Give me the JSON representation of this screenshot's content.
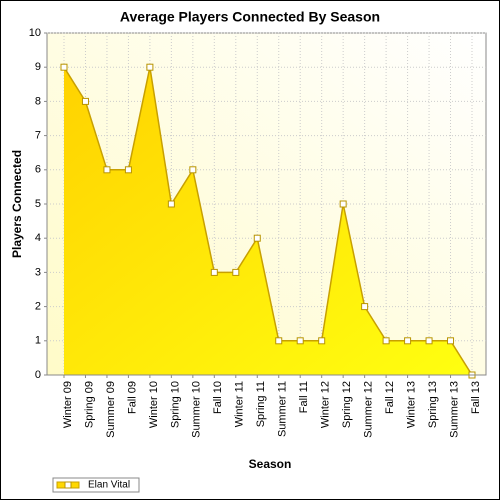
{
  "chart_data": {
    "type": "area",
    "title": "Average Players Connected By Season",
    "x_label": "Season",
    "y_label": "Players Connected",
    "categories": [
      "Winter 09",
      "Spring 09",
      "Summer 09",
      "Fall 09",
      "Winter 10",
      "Spring 10",
      "Summer 10",
      "Fall 10",
      "Winter 11",
      "Spring 11",
      "Summer 11",
      "Fall 11",
      "Winter 12",
      "Spring 12",
      "Summer 12",
      "Fall 12",
      "Winter 13",
      "Spring 13",
      "Summer 13",
      "Fall 13"
    ],
    "series": [
      {
        "name": "Elan Vital",
        "color": "#ffd800",
        "values": [
          9,
          8,
          6,
          6,
          9,
          5,
          6,
          3,
          3,
          4,
          1,
          1,
          1,
          5,
          2,
          1,
          1,
          1,
          1,
          0
        ]
      }
    ],
    "ylim": [
      0,
      10
    ],
    "yticks": [
      0,
      1,
      2,
      3,
      4,
      5,
      6,
      7,
      8,
      9,
      10
    ],
    "grid": true,
    "legend": "bottom-left"
  }
}
